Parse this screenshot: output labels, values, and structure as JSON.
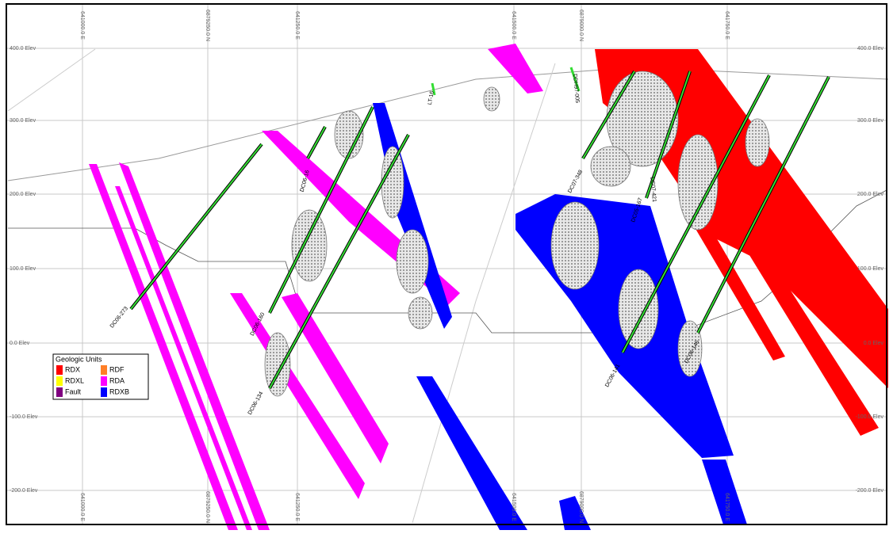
{
  "elevation_labels_left": [
    "400.0 Elev",
    "300.0 Elev",
    "200.0 Elev",
    "100.0 Elev",
    "0.0 Elev",
    "-100.0 Elev",
    "-200.0 Elev"
  ],
  "elevation_labels_right": [
    "400.0 Elev",
    "300.0 Elev",
    "200.0 Elev",
    "100.0 Elev",
    "0.0 Elev",
    "-100.0 Elev",
    "-200.0 Elev"
  ],
  "top_coordinate_labels": [
    "641000.0 E",
    "6879250.0 N",
    "641250.0 E",
    "641500.0 E",
    "6879000.0 N",
    "641750.0 E"
  ],
  "bottom_coordinate_labels": [
    "641000.0 E",
    "6879250.0 N",
    "641250.0 E",
    "641500.0 E",
    "6879000.0 N",
    "641750.0 E"
  ],
  "drill_holes": [
    "DC06-273",
    "DC06-16",
    "DC06-160",
    "DC06-134",
    "LT-16",
    "DDH97-005",
    "DC07-348",
    "DC05-167",
    "DC07-421",
    "DC06-141",
    "DC06-146"
  ],
  "legend": {
    "title": "Geologic Units",
    "items": [
      {
        "label": "RDX",
        "color": "#ff0000"
      },
      {
        "label": "RDF",
        "color": "#ff7f27"
      },
      {
        "label": "RDXL",
        "color": "#ffff00"
      },
      {
        "label": "RDA",
        "color": "#ff00ff"
      },
      {
        "label": "Fault",
        "color": "#800080"
      },
      {
        "label": "RDXB",
        "color": "#0000ff"
      }
    ]
  }
}
